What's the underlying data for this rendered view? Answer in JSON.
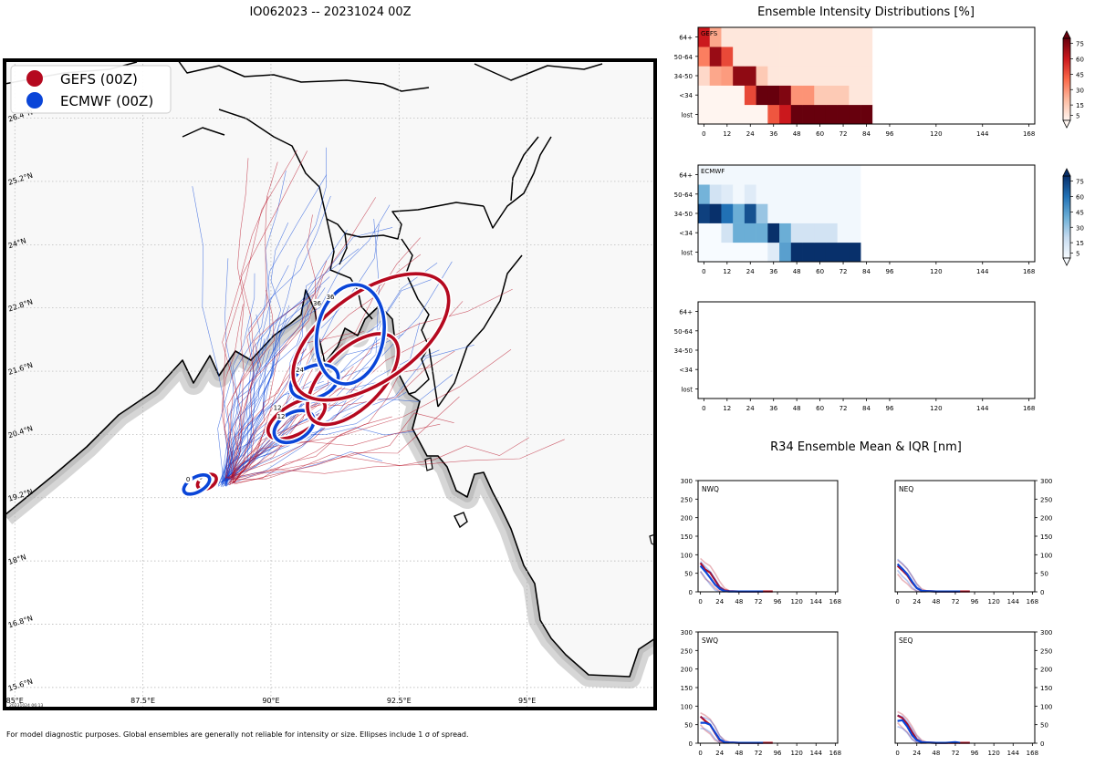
{
  "header": {
    "storm_title": "IO062023 -- 20231024 00Z",
    "intensity_title": "Ensemble Intensity Distributions [%]",
    "r34_title": "R34 Ensemble Mean & IQR [nm]"
  },
  "footer": {
    "note": "For model diagnostic purposes. Global ensembles are generally not reliable for intensity or size. Ellipses include 1 σ of spread.",
    "stamp": "20231024 06:13"
  },
  "colors": {
    "gefs": "#b5091f",
    "ecmwf": "#0a45d8",
    "land": "#f8f8f8",
    "sea": "#ffffff",
    "coast_shadow": "#c8c8c8"
  },
  "chart_data": [
    {
      "id": "track_map",
      "type": "scatter",
      "title": "IO062023 -- 20231024 00Z",
      "legend": [
        {
          "label": "GEFS (00Z)",
          "color": "#b5091f"
        },
        {
          "label": "ECMWF (00Z)",
          "color": "#0a45d8"
        }
      ],
      "lon_ticks": [
        "85°E",
        "87.5°E",
        "90°E",
        "92.5°E",
        "95°E"
      ],
      "lon_values": [
        85,
        87.5,
        90,
        92.5,
        95
      ],
      "lat_ticks": [
        "15.6°N",
        "16.8°N",
        "18°N",
        "19.2°N",
        "20.4°N",
        "21.6°N",
        "22.8°N",
        "24°N",
        "25.2°N",
        "26.4°N"
      ],
      "lat_values": [
        15.6,
        16.8,
        18.0,
        19.2,
        20.4,
        21.6,
        22.8,
        24.0,
        25.2,
        26.4
      ],
      "lon_range": [
        84.8,
        97.5
      ],
      "lat_range": [
        15.2,
        27.5
      ],
      "ellipses": [
        {
          "model": "GEFS",
          "hour": 0,
          "lon": 88.75,
          "lat": 19.5,
          "semi_lon": 0.2,
          "semi_lat": 0.12,
          "tilt_deg": -30
        },
        {
          "model": "ECMWF",
          "hour": 0,
          "lon": 88.55,
          "lat": 19.45,
          "semi_lon": 0.28,
          "semi_lat": 0.14,
          "tilt_deg": -30
        },
        {
          "model": "GEFS",
          "hour": 12,
          "lon": 90.5,
          "lat": 20.7,
          "semi_lon": 0.62,
          "semi_lat": 0.28,
          "tilt_deg": -30
        },
        {
          "model": "ECMWF",
          "hour": 12,
          "lon": 90.45,
          "lat": 20.55,
          "semi_lon": 0.42,
          "semi_lat": 0.26,
          "tilt_deg": -30
        },
        {
          "model": "GEFS",
          "hour": 24,
          "lon": 91.6,
          "lat": 21.45,
          "semi_lon": 1.12,
          "semi_lat": 0.55,
          "tilt_deg": -45
        },
        {
          "model": "ECMWF",
          "hour": 24,
          "lon": 90.85,
          "lat": 21.4,
          "semi_lon": 0.48,
          "semi_lat": 0.3,
          "tilt_deg": -20
        },
        {
          "model": "GEFS",
          "hour": 36,
          "lon": 91.95,
          "lat": 22.25,
          "semi_lon": 1.75,
          "semi_lat": 0.85,
          "tilt_deg": -35
        },
        {
          "model": "ECMWF",
          "hour": 36,
          "lon": 91.55,
          "lat": 22.3,
          "semi_lon": 0.65,
          "semi_lat": 0.95,
          "tilt_deg": 10
        }
      ]
    },
    {
      "id": "gefs_intensity",
      "type": "heatmap",
      "label": "GEFS",
      "cmap": "reds",
      "x_ticks": [
        0,
        12,
        24,
        36,
        48,
        60,
        72,
        84,
        96,
        120,
        144,
        168
      ],
      "xlim": [
        -3,
        171
      ],
      "y_categories": [
        "lost",
        "<34",
        "34-50",
        "50-64",
        "64+"
      ],
      "colorbar_ticks": [
        5,
        15,
        30,
        45,
        60,
        75
      ],
      "colorbar_range": [
        0,
        80
      ],
      "hours": [
        0,
        6,
        12,
        18,
        24,
        30,
        36,
        42,
        48,
        54,
        60,
        66,
        72,
        78,
        84
      ],
      "values": [
        [
          0,
          0,
          0,
          0,
          0,
          0,
          45,
          60,
          80,
          80,
          80,
          80,
          80,
          80,
          80
        ],
        [
          0,
          0,
          0,
          0,
          48,
          80,
          80,
          75,
          30,
          30,
          15,
          15,
          15,
          5,
          5
        ],
        [
          10,
          25,
          28,
          72,
          72,
          15,
          5,
          5,
          5,
          5,
          5,
          5,
          5,
          5,
          5
        ],
        [
          35,
          70,
          48,
          5,
          5,
          5,
          5,
          5,
          5,
          5,
          5,
          5,
          5,
          5,
          5
        ],
        [
          60,
          25,
          5,
          5,
          5,
          5,
          5,
          5,
          5,
          5,
          5,
          5,
          5,
          5,
          5
        ]
      ]
    },
    {
      "id": "ecmwf_intensity",
      "type": "heatmap",
      "label": "ECMWF",
      "cmap": "blues",
      "x_ticks": [
        0,
        12,
        24,
        36,
        48,
        60,
        72,
        84,
        96,
        120,
        144,
        168
      ],
      "xlim": [
        -3,
        171
      ],
      "y_categories": [
        "lost",
        "<34",
        "34-50",
        "50-64",
        "64+"
      ],
      "colorbar_ticks": [
        5,
        15,
        30,
        45,
        60,
        75
      ],
      "colorbar_range": [
        0,
        80
      ],
      "hours": [
        0,
        6,
        12,
        18,
        24,
        30,
        36,
        42,
        48,
        54,
        60,
        66,
        72,
        78
      ],
      "values": [
        [
          0,
          0,
          0,
          0,
          0,
          0,
          10,
          45,
          80,
          80,
          80,
          80,
          80,
          80
        ],
        [
          0,
          0,
          15,
          40,
          40,
          40,
          80,
          40,
          15,
          15,
          15,
          15,
          2,
          2
        ],
        [
          75,
          80,
          60,
          40,
          70,
          30,
          2,
          2,
          2,
          2,
          2,
          2,
          2,
          2
        ],
        [
          38,
          15,
          10,
          2,
          10,
          2,
          2,
          2,
          2,
          2,
          2,
          2,
          2,
          2
        ],
        [
          2,
          2,
          2,
          2,
          2,
          2,
          2,
          2,
          2,
          2,
          2,
          2,
          2,
          2
        ]
      ]
    },
    {
      "id": "empty_intensity",
      "type": "heatmap",
      "label": "",
      "x_ticks": [
        0,
        12,
        24,
        36,
        48,
        60,
        72,
        84,
        96,
        120,
        144,
        168
      ],
      "xlim": [
        -3,
        171
      ],
      "y_categories": [
        "lost",
        "<34",
        "34-50",
        "50-64",
        "64+"
      ],
      "values": []
    },
    {
      "id": "r34_quadrants",
      "type": "line",
      "title": "R34 Ensemble Mean & IQR [nm]",
      "x_ticks": [
        0,
        24,
        48,
        72,
        96,
        120,
        144,
        168
      ],
      "xlim": [
        -3,
        171
      ],
      "y_ticks": [
        0,
        50,
        100,
        150,
        200,
        250,
        300
      ],
      "ylim": [
        0,
        300
      ],
      "panels": [
        {
          "quadrant": "NWQ",
          "series": [
            {
              "name": "GEFS mean",
              "x": [
                0,
                6,
                12,
                18,
                24,
                30,
                36,
                48,
                60,
                72,
                84,
                90
              ],
              "y": [
                78,
                60,
                52,
                32,
                12,
                4,
                2,
                1,
                1,
                1,
                1,
                1
              ]
            },
            {
              "name": "GEFS IQR high",
              "x": [
                0,
                6,
                12,
                18,
                24,
                30,
                36
              ],
              "y": [
                90,
                78,
                70,
                50,
                28,
                10,
                3
              ]
            },
            {
              "name": "GEFS IQR low",
              "x": [
                0,
                6,
                12,
                18,
                24,
                30,
                36
              ],
              "y": [
                55,
                35,
                25,
                10,
                2,
                0,
                0
              ]
            },
            {
              "name": "ECMWF mean",
              "x": [
                0,
                6,
                12,
                18,
                24,
                30,
                36,
                48,
                60,
                72,
                78
              ],
              "y": [
                70,
                55,
                38,
                20,
                8,
                2,
                1,
                1,
                1,
                1,
                1
              ]
            },
            {
              "name": "ECMWF IQR high",
              "x": [
                0,
                6,
                12,
                18,
                24,
                30
              ],
              "y": [
                82,
                68,
                55,
                35,
                15,
                5
              ]
            },
            {
              "name": "ECMWF IQR low",
              "x": [
                0,
                6,
                12,
                18,
                24,
                30
              ],
              "y": [
                55,
                38,
                20,
                5,
                0,
                0
              ]
            }
          ]
        },
        {
          "quadrant": "NEQ",
          "series": [
            {
              "name": "GEFS mean",
              "x": [
                0,
                6,
                12,
                18,
                24,
                30,
                36,
                48,
                60,
                72,
                84,
                90
              ],
              "y": [
                70,
                58,
                45,
                25,
                10,
                3,
                2,
                1,
                1,
                1,
                1,
                1
              ]
            },
            {
              "name": "GEFS IQR high",
              "x": [
                0,
                6,
                12,
                18,
                24,
                30,
                36
              ],
              "y": [
                85,
                75,
                62,
                42,
                22,
                8,
                3
              ]
            },
            {
              "name": "GEFS IQR low",
              "x": [
                0,
                6,
                12,
                18,
                24,
                30,
                36
              ],
              "y": [
                48,
                32,
                22,
                8,
                2,
                0,
                0
              ]
            },
            {
              "name": "ECMWF mean",
              "x": [
                0,
                6,
                12,
                18,
                24,
                30,
                36,
                48,
                60,
                72,
                78
              ],
              "y": [
                75,
                62,
                48,
                28,
                10,
                3,
                2,
                1,
                1,
                1,
                1
              ]
            },
            {
              "name": "ECMWF IQR high",
              "x": [
                0,
                6,
                12,
                18,
                24,
                30
              ],
              "y": [
                88,
                76,
                62,
                42,
                20,
                6
              ]
            },
            {
              "name": "ECMWF IQR low",
              "x": [
                0,
                6,
                12,
                18,
                24,
                30
              ],
              "y": [
                58,
                42,
                30,
                12,
                2,
                0
              ]
            }
          ]
        },
        {
          "quadrant": "SWQ",
          "series": [
            {
              "name": "GEFS mean",
              "x": [
                0,
                6,
                12,
                18,
                24,
                30,
                36,
                48,
                60,
                72,
                84,
                90
              ],
              "y": [
                72,
                60,
                50,
                28,
                8,
                3,
                2,
                1,
                1,
                1,
                1,
                1
              ]
            },
            {
              "name": "GEFS IQR high",
              "x": [
                0,
                6,
                12,
                18,
                24,
                30,
                36
              ],
              "y": [
                82,
                75,
                65,
                45,
                20,
                8,
                3
              ]
            },
            {
              "name": "GEFS IQR low",
              "x": [
                0,
                6,
                12,
                18,
                24,
                30,
                36
              ],
              "y": [
                50,
                35,
                25,
                8,
                2,
                0,
                0
              ]
            },
            {
              "name": "ECMWF mean",
              "x": [
                0,
                6,
                12,
                18,
                24,
                30,
                36,
                48,
                60,
                72,
                78
              ],
              "y": [
                55,
                55,
                50,
                30,
                10,
                3,
                2,
                1,
                1,
                1,
                1
              ]
            },
            {
              "name": "ECMWF IQR high",
              "x": [
                0,
                6,
                12,
                18,
                24,
                30
              ],
              "y": [
                70,
                68,
                62,
                45,
                20,
                6
              ]
            },
            {
              "name": "ECMWF IQR low",
              "x": [
                0,
                6,
                12,
                18,
                24,
                30
              ],
              "y": [
                40,
                38,
                30,
                12,
                2,
                0
              ]
            }
          ]
        },
        {
          "quadrant": "SEQ",
          "series": [
            {
              "name": "GEFS mean",
              "x": [
                0,
                6,
                12,
                18,
                24,
                30,
                36,
                48,
                60,
                72,
                84,
                90
              ],
              "y": [
                75,
                68,
                52,
                30,
                10,
                3,
                2,
                1,
                1,
                1,
                1,
                1
              ]
            },
            {
              "name": "GEFS IQR high",
              "x": [
                0,
                6,
                12,
                18,
                24,
                30,
                36
              ],
              "y": [
                85,
                78,
                65,
                45,
                22,
                8,
                3
              ]
            },
            {
              "name": "GEFS IQR low",
              "x": [
                0,
                6,
                12,
                18,
                24,
                30,
                36
              ],
              "y": [
                55,
                42,
                30,
                12,
                2,
                0,
                0
              ]
            },
            {
              "name": "ECMWF mean",
              "x": [
                0,
                6,
                12,
                18,
                24,
                30,
                36,
                48,
                60,
                72,
                78
              ],
              "y": [
                60,
                62,
                45,
                22,
                8,
                3,
                2,
                1,
                1,
                3,
                1
              ]
            },
            {
              "name": "ECMWF IQR high",
              "x": [
                0,
                6,
                12,
                18,
                24,
                30
              ],
              "y": [
                75,
                72,
                58,
                38,
                18,
                6
              ]
            },
            {
              "name": "ECMWF IQR low",
              "x": [
                0,
                6,
                12,
                18,
                24,
                30
              ],
              "y": [
                45,
                40,
                28,
                10,
                2,
                0
              ]
            }
          ]
        }
      ]
    }
  ]
}
